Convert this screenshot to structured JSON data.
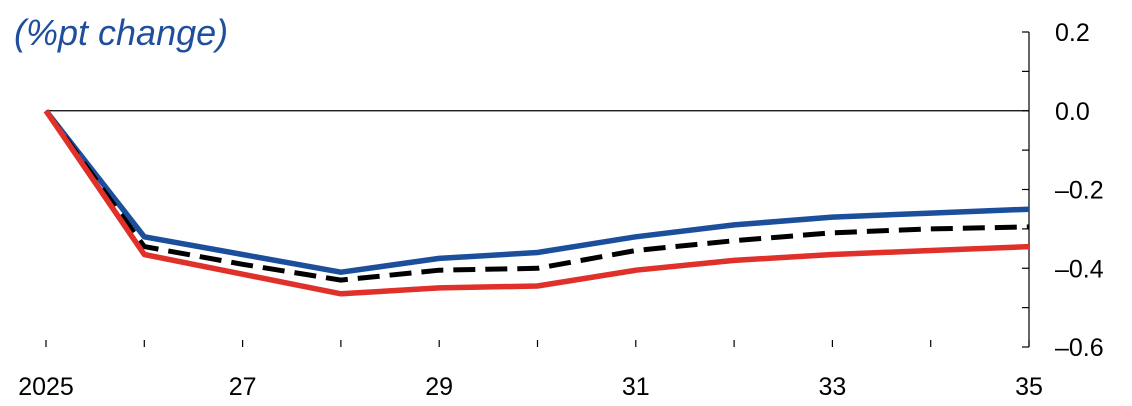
{
  "unit_label": "(%pt change)",
  "colors": {
    "blue": "#1b4f9c",
    "red": "#e0302a",
    "black": "#000000",
    "label_blue": "#1f4e9c"
  },
  "chart_data": {
    "type": "line",
    "title": "",
    "xlabel": "",
    "ylabel": "(%pt change)",
    "x": [
      2025,
      2026,
      2027,
      2028,
      2029,
      2030,
      2031,
      2032,
      2033,
      2034,
      2035
    ],
    "x_tick_values": [
      2025,
      2027,
      2029,
      2031,
      2033,
      2035
    ],
    "x_tick_labels": [
      "2025",
      "27",
      "29",
      "31",
      "33",
      "35"
    ],
    "xlim": [
      2025,
      2035
    ],
    "ylim": [
      -0.6,
      0.2
    ],
    "y_tick_values": [
      0.2,
      0.0,
      -0.2,
      -0.4,
      -0.6
    ],
    "y_tick_labels": [
      "0.2",
      "0.0",
      "–0.2",
      "–0.4",
      "–0.6"
    ],
    "y_minor_step": 0.1,
    "y_axis_side": "right",
    "grid": false,
    "zero_line": true,
    "legend": "none",
    "series": [
      {
        "color": "#1b4f9c",
        "style": "solid",
        "values": [
          0.0,
          -0.32,
          -0.365,
          -0.41,
          -0.375,
          -0.36,
          -0.32,
          -0.29,
          -0.27,
          -0.26,
          -0.25
        ]
      },
      {
        "color": "#000000",
        "style": "dashed",
        "values": [
          0.0,
          -0.345,
          -0.39,
          -0.43,
          -0.405,
          -0.4,
          -0.355,
          -0.33,
          -0.31,
          -0.3,
          -0.295
        ]
      },
      {
        "color": "#e0302a",
        "style": "solid",
        "values": [
          0.0,
          -0.365,
          -0.415,
          -0.465,
          -0.45,
          -0.445,
          -0.405,
          -0.38,
          -0.365,
          -0.355,
          -0.345
        ]
      }
    ]
  }
}
